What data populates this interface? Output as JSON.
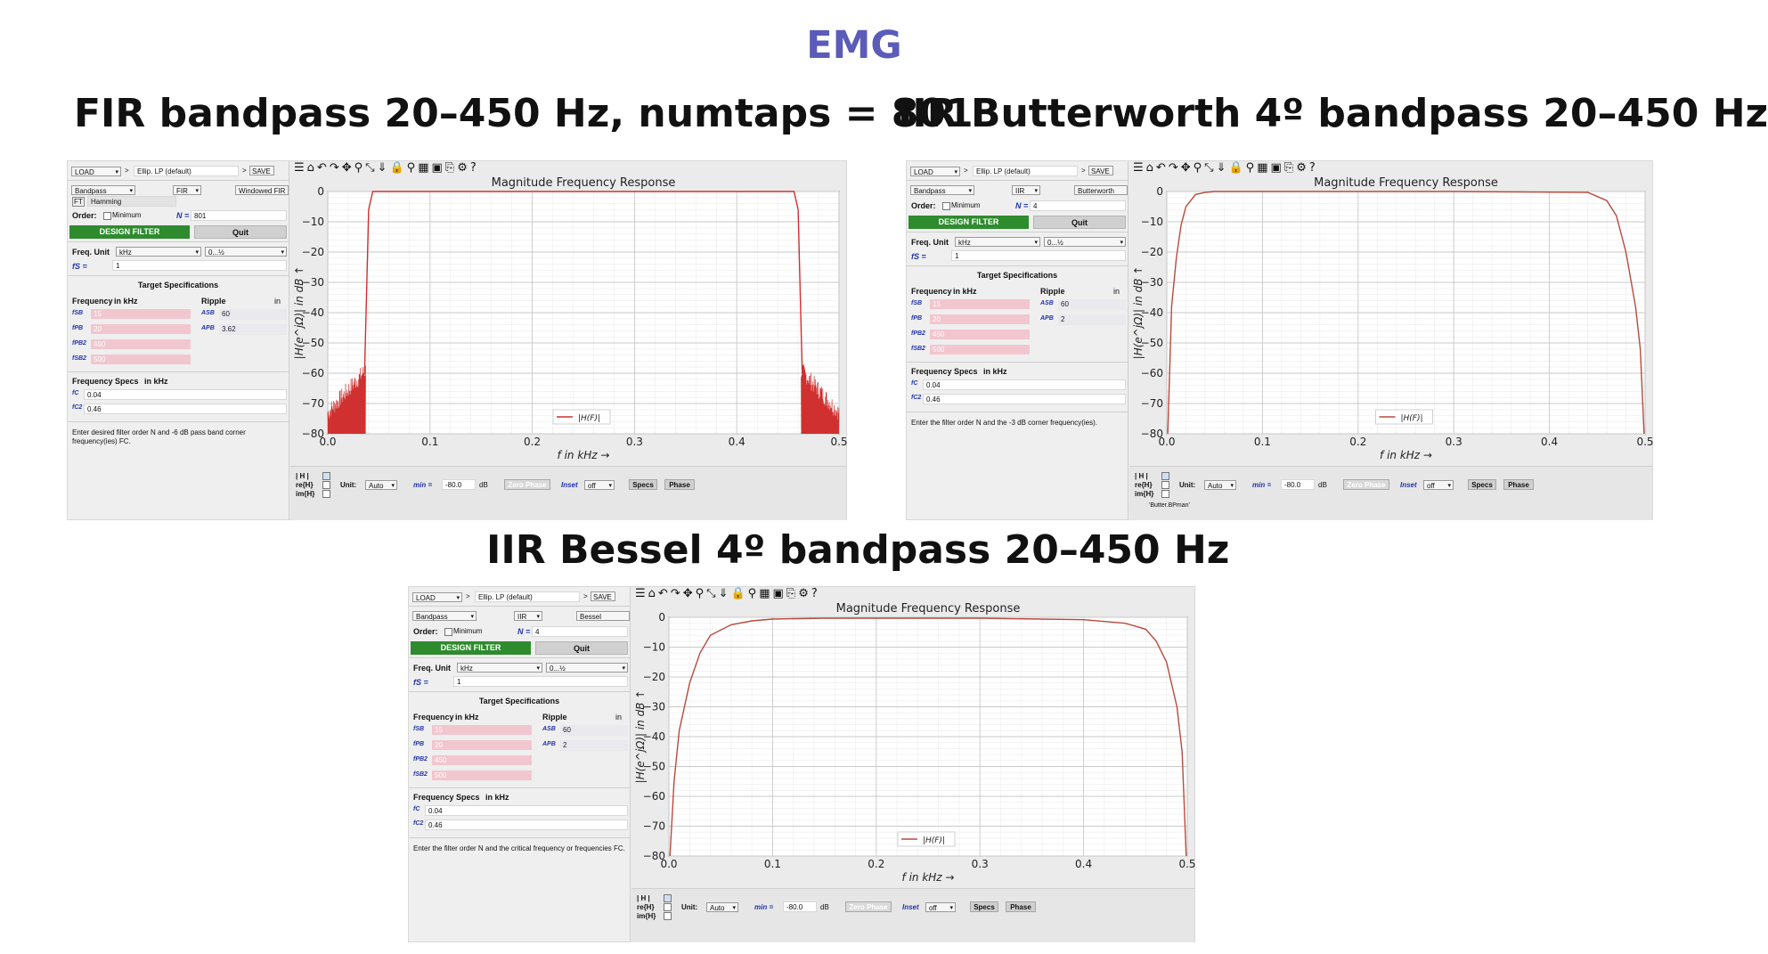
{
  "page": {
    "title": "EMG"
  },
  "sections": [
    {
      "title": "FIR bandpass 20–450 Hz, numtaps = 801",
      "left": {
        "load": "LOAD",
        "preset": "Ellip. LP (default)",
        "save": "SAVE",
        "response_type": "Bandpass",
        "filter_class": "FIR",
        "design_method": "Windowed FIR",
        "window_label": "Hamming",
        "order_label": "Order:",
        "minimum_label": "Minimum",
        "n_label": "N =",
        "order": "801",
        "design_button": "DESIGN FILTER",
        "quit_button": "Quit",
        "freq_unit_label": "Freq. Unit",
        "freq_unit": "kHz",
        "freq_range": "0...½",
        "fs_label": "fS =",
        "fs": "1",
        "target_title": "Target Specifications",
        "frequency_label": "Frequency",
        "in_khz": "in kHz",
        "ripple_label": "Ripple",
        "ripple_in": "in",
        "freq_rows": [
          {
            "label": "fSB",
            "value": "15"
          },
          {
            "label": "fPB",
            "value": "20"
          },
          {
            "label": "fPB2",
            "value": "450"
          },
          {
            "label": "fSB2",
            "value": "500"
          }
        ],
        "ripple_rows": [
          {
            "label": "ASB",
            "value": "60"
          },
          {
            "label": "APB",
            "value": "3.62"
          }
        ],
        "freq_specs_title": "Frequency Specs",
        "freq_specs_unit": "in kHz",
        "spec_rows": [
          {
            "label": "fC",
            "value": "0.04"
          },
          {
            "label": "fC2",
            "value": "0.46"
          }
        ],
        "info_text": "Enter desired filter order N and -6 dB pass band corner frequency(ies) FC."
      },
      "bottom": {
        "mag_label": "| H |",
        "re_label": "re{H}",
        "im_label": "im{H}",
        "unit_label": "Unit:",
        "unit": "Auto",
        "min_label": "min =",
        "min_value": "-80.0",
        "db": "dB",
        "zero_phase": "Zero Phase",
        "inset_label": "Inset",
        "inset": "off",
        "specs": "Specs",
        "phase": "Phase",
        "log_text": ""
      },
      "plot": {
        "title": "Magnitude Frequency Response",
        "legend": "|H(F)|",
        "curve_color": "#d03030",
        "curve_shape": "fir_ripple"
      }
    },
    {
      "title": "IIR Butterworth 4º bandpass 20–450 Hz",
      "left": {
        "load": "LOAD",
        "preset": "Ellip. LP (default)",
        "save": "SAVE",
        "response_type": "Bandpass",
        "filter_class": "IIR",
        "design_method": "Butterworth",
        "window_label": "",
        "order_label": "Order:",
        "minimum_label": "Minimum",
        "n_label": "N =",
        "order": "4",
        "design_button": "DESIGN FILTER",
        "quit_button": "Quit",
        "freq_unit_label": "Freq. Unit",
        "freq_unit": "kHz",
        "freq_range": "0...½",
        "fs_label": "fS =",
        "fs": "1",
        "target_title": "Target Specifications",
        "frequency_label": "Frequency",
        "in_khz": "in kHz",
        "ripple_label": "Ripple",
        "ripple_in": "in",
        "freq_rows": [
          {
            "label": "fSB",
            "value": "15"
          },
          {
            "label": "fPB",
            "value": "20"
          },
          {
            "label": "fPB2",
            "value": "450"
          },
          {
            "label": "fSB2",
            "value": "500"
          }
        ],
        "ripple_rows": [
          {
            "label": "ASB",
            "value": "60"
          },
          {
            "label": "APB",
            "value": "2"
          }
        ],
        "freq_specs_title": "Frequency Specs",
        "freq_specs_unit": "in kHz",
        "spec_rows": [
          {
            "label": "fC",
            "value": "0.04"
          },
          {
            "label": "fC2",
            "value": "0.46"
          }
        ],
        "info_text": "Enter the filter order N and the -3 dB corner frequency(ies)."
      },
      "bottom": {
        "mag_label": "| H |",
        "re_label": "re{H}",
        "im_label": "im{H}",
        "unit_label": "Unit:",
        "unit": "Auto",
        "min_label": "min =",
        "min_value": "-80.0",
        "db": "dB",
        "zero_phase": "Zero Phase",
        "inset_label": "Inset",
        "inset": "off",
        "specs": "Specs",
        "phase": "Phase",
        "log_text": "'Butter.BPman'"
      },
      "plot": {
        "title": "Magnitude Frequency Response",
        "legend": "|H(F)|",
        "curve_color": "#b84a3e",
        "curve_shape": "butterworth"
      }
    },
    {
      "title": "IIR Bessel 4º bandpass 20–450 Hz",
      "left": {
        "load": "LOAD",
        "preset": "Ellip. LP (default)",
        "save": "SAVE",
        "response_type": "Bandpass",
        "filter_class": "IIR",
        "design_method": "Bessel",
        "window_label": "",
        "order_label": "Order:",
        "minimum_label": "Minimum",
        "n_label": "N =",
        "order": "4",
        "design_button": "DESIGN FILTER",
        "quit_button": "Quit",
        "freq_unit_label": "Freq. Unit",
        "freq_unit": "kHz",
        "freq_range": "0...½",
        "fs_label": "fS =",
        "fs": "1",
        "target_title": "Target Specifications",
        "frequency_label": "Frequency",
        "in_khz": "in kHz",
        "ripple_label": "Ripple",
        "ripple_in": "in",
        "freq_rows": [
          {
            "label": "fSB",
            "value": "15"
          },
          {
            "label": "fPB",
            "value": "20"
          },
          {
            "label": "fPB2",
            "value": "450"
          },
          {
            "label": "fSB2",
            "value": "500"
          }
        ],
        "ripple_rows": [
          {
            "label": "ASB",
            "value": "60"
          },
          {
            "label": "APB",
            "value": "2"
          }
        ],
        "freq_specs_title": "Frequency Specs",
        "freq_specs_unit": "in kHz",
        "spec_rows": [
          {
            "label": "fC",
            "value": "0.04"
          },
          {
            "label": "fC2",
            "value": "0.46"
          }
        ],
        "info_text": "Enter the filter order N and the critical frequency or frequencies FC."
      },
      "bottom": {
        "mag_label": "| H |",
        "re_label": "re{H}",
        "im_label": "im{H}",
        "unit_label": "Unit:",
        "unit": "Auto",
        "min_label": "min =",
        "min_value": "-80.0",
        "db": "dB",
        "zero_phase": "Zero Phase",
        "inset_label": "Inset",
        "inset": "off",
        "specs": "Specs",
        "phase": "Phase",
        "log_text": ""
      },
      "plot": {
        "title": "Magnitude Frequency Response",
        "legend": "|H(F)|",
        "curve_color": "#b84a3e",
        "curve_shape": "bessel"
      }
    }
  ],
  "chart_data": [
    {
      "type": "line",
      "title": "Magnitude Frequency Response",
      "xlabel": "f in kHz →",
      "ylabel": "|H(e^jΩ)| in dB ↑",
      "xlim": [
        0.0,
        0.5
      ],
      "ylim": [
        -80,
        0
      ],
      "xticks": [
        "0.0",
        "0.1",
        "0.2",
        "0.3",
        "0.4",
        "0.5"
      ],
      "yticks": [
        "0",
        "−10",
        "−20",
        "−30",
        "−40",
        "−50",
        "−60",
        "−70",
        "−80"
      ],
      "grid": true,
      "legend_position": "bottom-center",
      "series": [
        {
          "name": "|H(F)|",
          "x": [
            0.0,
            0.01,
            0.02,
            0.03,
            0.036,
            0.04,
            0.044,
            0.05,
            0.1,
            0.2,
            0.3,
            0.4,
            0.45,
            0.456,
            0.46,
            0.464,
            0.47,
            0.48,
            0.49,
            0.5
          ],
          "y": [
            -80,
            -75,
            -70,
            -66,
            -60,
            -6,
            0,
            0,
            0,
            0,
            0,
            0,
            0,
            0,
            -6,
            -60,
            -66,
            -70,
            -75,
            -80
          ]
        }
      ]
    },
    {
      "type": "line",
      "title": "Magnitude Frequency Response",
      "xlabel": "f in kHz →",
      "ylabel": "|H(e^jΩ)| in dB ↑",
      "xlim": [
        0.0,
        0.5
      ],
      "ylim": [
        -80,
        0
      ],
      "xticks": [
        "0.0",
        "0.1",
        "0.2",
        "0.3",
        "0.4",
        "0.5"
      ],
      "yticks": [
        "0",
        "−10",
        "−20",
        "−30",
        "−40",
        "−50",
        "−60",
        "−70",
        "−80"
      ],
      "grid": true,
      "legend_position": "bottom-center",
      "series": [
        {
          "name": "|H(F)|",
          "x": [
            0.001,
            0.005,
            0.01,
            0.015,
            0.02,
            0.03,
            0.04,
            0.05,
            0.1,
            0.3,
            0.44,
            0.46,
            0.47,
            0.48,
            0.49,
            0.495,
            0.499
          ],
          "y": [
            -80,
            -38,
            -22,
            -11,
            -5,
            -1,
            -0.3,
            0,
            0,
            0,
            -0.3,
            -3,
            -8,
            -20,
            -38,
            -52,
            -80
          ]
        }
      ]
    },
    {
      "type": "line",
      "title": "Magnitude Frequency Response",
      "xlabel": "f in kHz →",
      "ylabel": "|H(e^jΩ)| in dB ↑",
      "xlim": [
        0.0,
        0.5
      ],
      "ylim": [
        -80,
        0
      ],
      "xticks": [
        "0.0",
        "0.1",
        "0.2",
        "0.3",
        "0.4",
        "0.5"
      ],
      "yticks": [
        "0",
        "−10",
        "−20",
        "−30",
        "−40",
        "−50",
        "−60",
        "−70",
        "−80"
      ],
      "grid": true,
      "legend_position": "bottom-center",
      "series": [
        {
          "name": "|H(F)|",
          "x": [
            0.001,
            0.005,
            0.01,
            0.02,
            0.03,
            0.04,
            0.06,
            0.08,
            0.1,
            0.15,
            0.3,
            0.4,
            0.44,
            0.46,
            0.47,
            0.48,
            0.49,
            0.495,
            0.499
          ],
          "y": [
            -80,
            -55,
            -38,
            -22,
            -12,
            -6,
            -2.5,
            -1.2,
            -0.6,
            -0.3,
            -0.3,
            -0.8,
            -2,
            -4,
            -8,
            -15,
            -30,
            -45,
            -80
          ]
        }
      ]
    }
  ]
}
